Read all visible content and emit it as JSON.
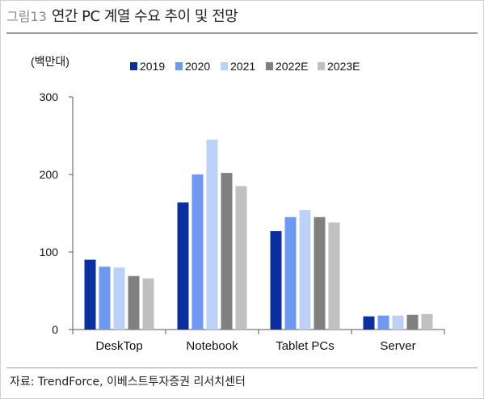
{
  "figure": {
    "number": "그림13",
    "title": "연간 PC 계열 수요 추이 및 전망",
    "source": "자료: TrendForce, 이베스트투자증권 리서치센터"
  },
  "colors": {
    "2019": "#0b2f9c",
    "2020": "#6f98f0",
    "2021": "#bcd1f7",
    "2022E": "#808080",
    "2023E": "#c0c0c0"
  },
  "chart_data": {
    "type": "bar",
    "title": "",
    "ylabel": "(백만대)",
    "xlabel": "",
    "ylim": [
      0,
      300
    ],
    "yticks": [
      0,
      100,
      200,
      300
    ],
    "categories": [
      "DeskTop",
      "Notebook",
      "Tablet PCs",
      "Server"
    ],
    "legend_position": "top",
    "grid": false,
    "series": [
      {
        "name": "2019",
        "values": [
          90,
          164,
          127,
          17
        ]
      },
      {
        "name": "2020",
        "values": [
          81,
          200,
          145,
          18
        ]
      },
      {
        "name": "2021",
        "values": [
          80,
          245,
          154,
          18
        ]
      },
      {
        "name": "2022E",
        "values": [
          69,
          202,
          145,
          19
        ]
      },
      {
        "name": "2023E",
        "values": [
          66,
          185,
          138,
          20
        ]
      }
    ]
  }
}
